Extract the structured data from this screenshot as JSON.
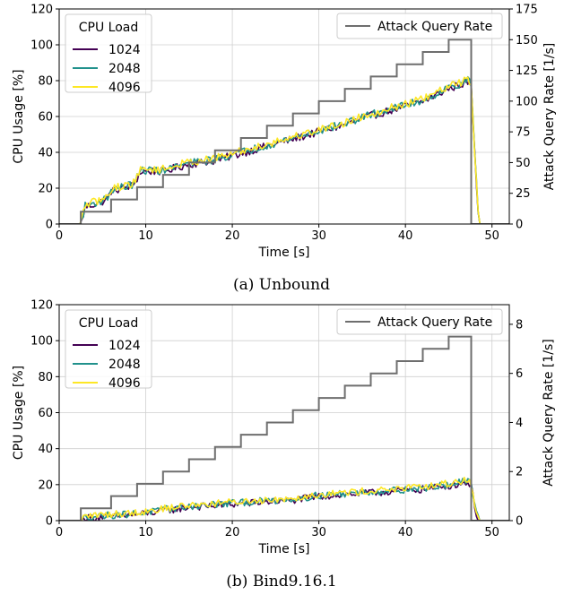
{
  "figures": [
    {
      "caption": "(a) Unbound"
    },
    {
      "caption": "(b) Bind9.16.1"
    }
  ],
  "chart_data": [
    {
      "type": "line",
      "caption": "(a) Unbound",
      "xlabel": "Time [s]",
      "ylabel": "CPU Usage [%]",
      "y2label": "Attack Query Rate [1/s]",
      "xlim": [
        0,
        52
      ],
      "ylim": [
        0,
        120
      ],
      "y2lim": [
        0,
        175
      ],
      "xticks": [
        0,
        10,
        20,
        30,
        40,
        50
      ],
      "yticks": [
        0,
        20,
        40,
        60,
        80,
        100,
        120
      ],
      "y2ticks": [
        0,
        25,
        50,
        75,
        100,
        125,
        150,
        175
      ],
      "grid": true,
      "legend_title": "CPU Load",
      "legend_placement": "top-left",
      "legend2_placement": "top-right",
      "cpu_series": [
        {
          "name": "1024",
          "color": "#440154"
        },
        {
          "name": "2048",
          "color": "#21918c"
        },
        {
          "name": "4096",
          "color": "#fde725"
        }
      ],
      "cpu_profile": {
        "x": [
          0,
          2.5,
          3.0,
          5.5,
          6.0,
          8.5,
          9.5,
          12,
          15,
          18,
          21,
          24,
          27,
          30,
          33,
          36,
          39,
          42,
          45,
          47.2,
          47.6,
          48.0,
          48.5,
          52
        ],
        "y": [
          0,
          0,
          10,
          14,
          19,
          22,
          30,
          30,
          34,
          36,
          40,
          44,
          48,
          52,
          56,
          61,
          65,
          69,
          76,
          80,
          78,
          40,
          0,
          0
        ]
      },
      "attack_series": {
        "name": "Attack Query Rate",
        "color": "#6e6e6e",
        "x": [
          0,
          2.5,
          2.5,
          6,
          6,
          9,
          9,
          12,
          12,
          15,
          15,
          18,
          18,
          21,
          21,
          24,
          24,
          27,
          27,
          30,
          30,
          33,
          33,
          36,
          36,
          39,
          39,
          42,
          42,
          45,
          45,
          47.6,
          47.6,
          52
        ],
        "y": [
          0,
          0,
          10,
          10,
          20,
          20,
          30,
          30,
          40,
          40,
          50,
          50,
          60,
          60,
          70,
          70,
          80,
          80,
          90,
          90,
          100,
          100,
          110,
          110,
          120,
          120,
          130,
          130,
          140,
          140,
          150,
          150,
          0,
          0
        ]
      }
    },
    {
      "type": "line",
      "caption": "(b) Bind9.16.1",
      "xlabel": "Time [s]",
      "ylabel": "CPU Usage [%]",
      "y2label": "Attack Query Rate [1/s]",
      "xlim": [
        0,
        52
      ],
      "ylim": [
        0,
        120
      ],
      "y2lim": [
        0,
        8.8
      ],
      "xticks": [
        0,
        10,
        20,
        30,
        40,
        50
      ],
      "yticks": [
        0,
        20,
        40,
        60,
        80,
        100,
        120
      ],
      "y2ticks": [
        0,
        2,
        4,
        6,
        8
      ],
      "grid": true,
      "legend_title": "CPU Load",
      "legend_placement": "top-left",
      "legend2_placement": "top-right",
      "cpu_series": [
        {
          "name": "1024",
          "color": "#440154"
        },
        {
          "name": "2048",
          "color": "#21918c"
        },
        {
          "name": "4096",
          "color": "#fde725"
        }
      ],
      "cpu_profile": {
        "x": [
          0,
          2.5,
          3.0,
          6,
          9,
          12,
          15,
          18,
          21,
          24,
          27,
          30,
          33,
          36,
          39,
          42,
          45,
          47.2,
          47.6,
          48.0,
          48.5,
          52
        ],
        "y": [
          0,
          0,
          2,
          3,
          4,
          6,
          8,
          9,
          10,
          11,
          12,
          14,
          15,
          16,
          17,
          18,
          20,
          22,
          20,
          8,
          0,
          0
        ]
      },
      "attack_series": {
        "name": "Attack Query Rate",
        "color": "#6e6e6e",
        "x": [
          0,
          2.5,
          2.5,
          6,
          6,
          9,
          9,
          12,
          12,
          15,
          15,
          18,
          18,
          21,
          21,
          24,
          24,
          27,
          27,
          30,
          30,
          33,
          33,
          36,
          36,
          39,
          39,
          42,
          42,
          45,
          45,
          47.6,
          47.6,
          52
        ],
        "y": [
          0,
          0,
          0.5,
          0.5,
          1,
          1,
          1.5,
          1.5,
          2,
          2,
          2.5,
          2.5,
          3,
          3,
          3.5,
          3.5,
          4,
          4,
          4.5,
          4.5,
          5,
          5,
          5.5,
          5.5,
          6,
          6,
          6.5,
          6.5,
          7,
          7,
          7.5,
          7.5,
          0,
          0
        ]
      }
    }
  ]
}
